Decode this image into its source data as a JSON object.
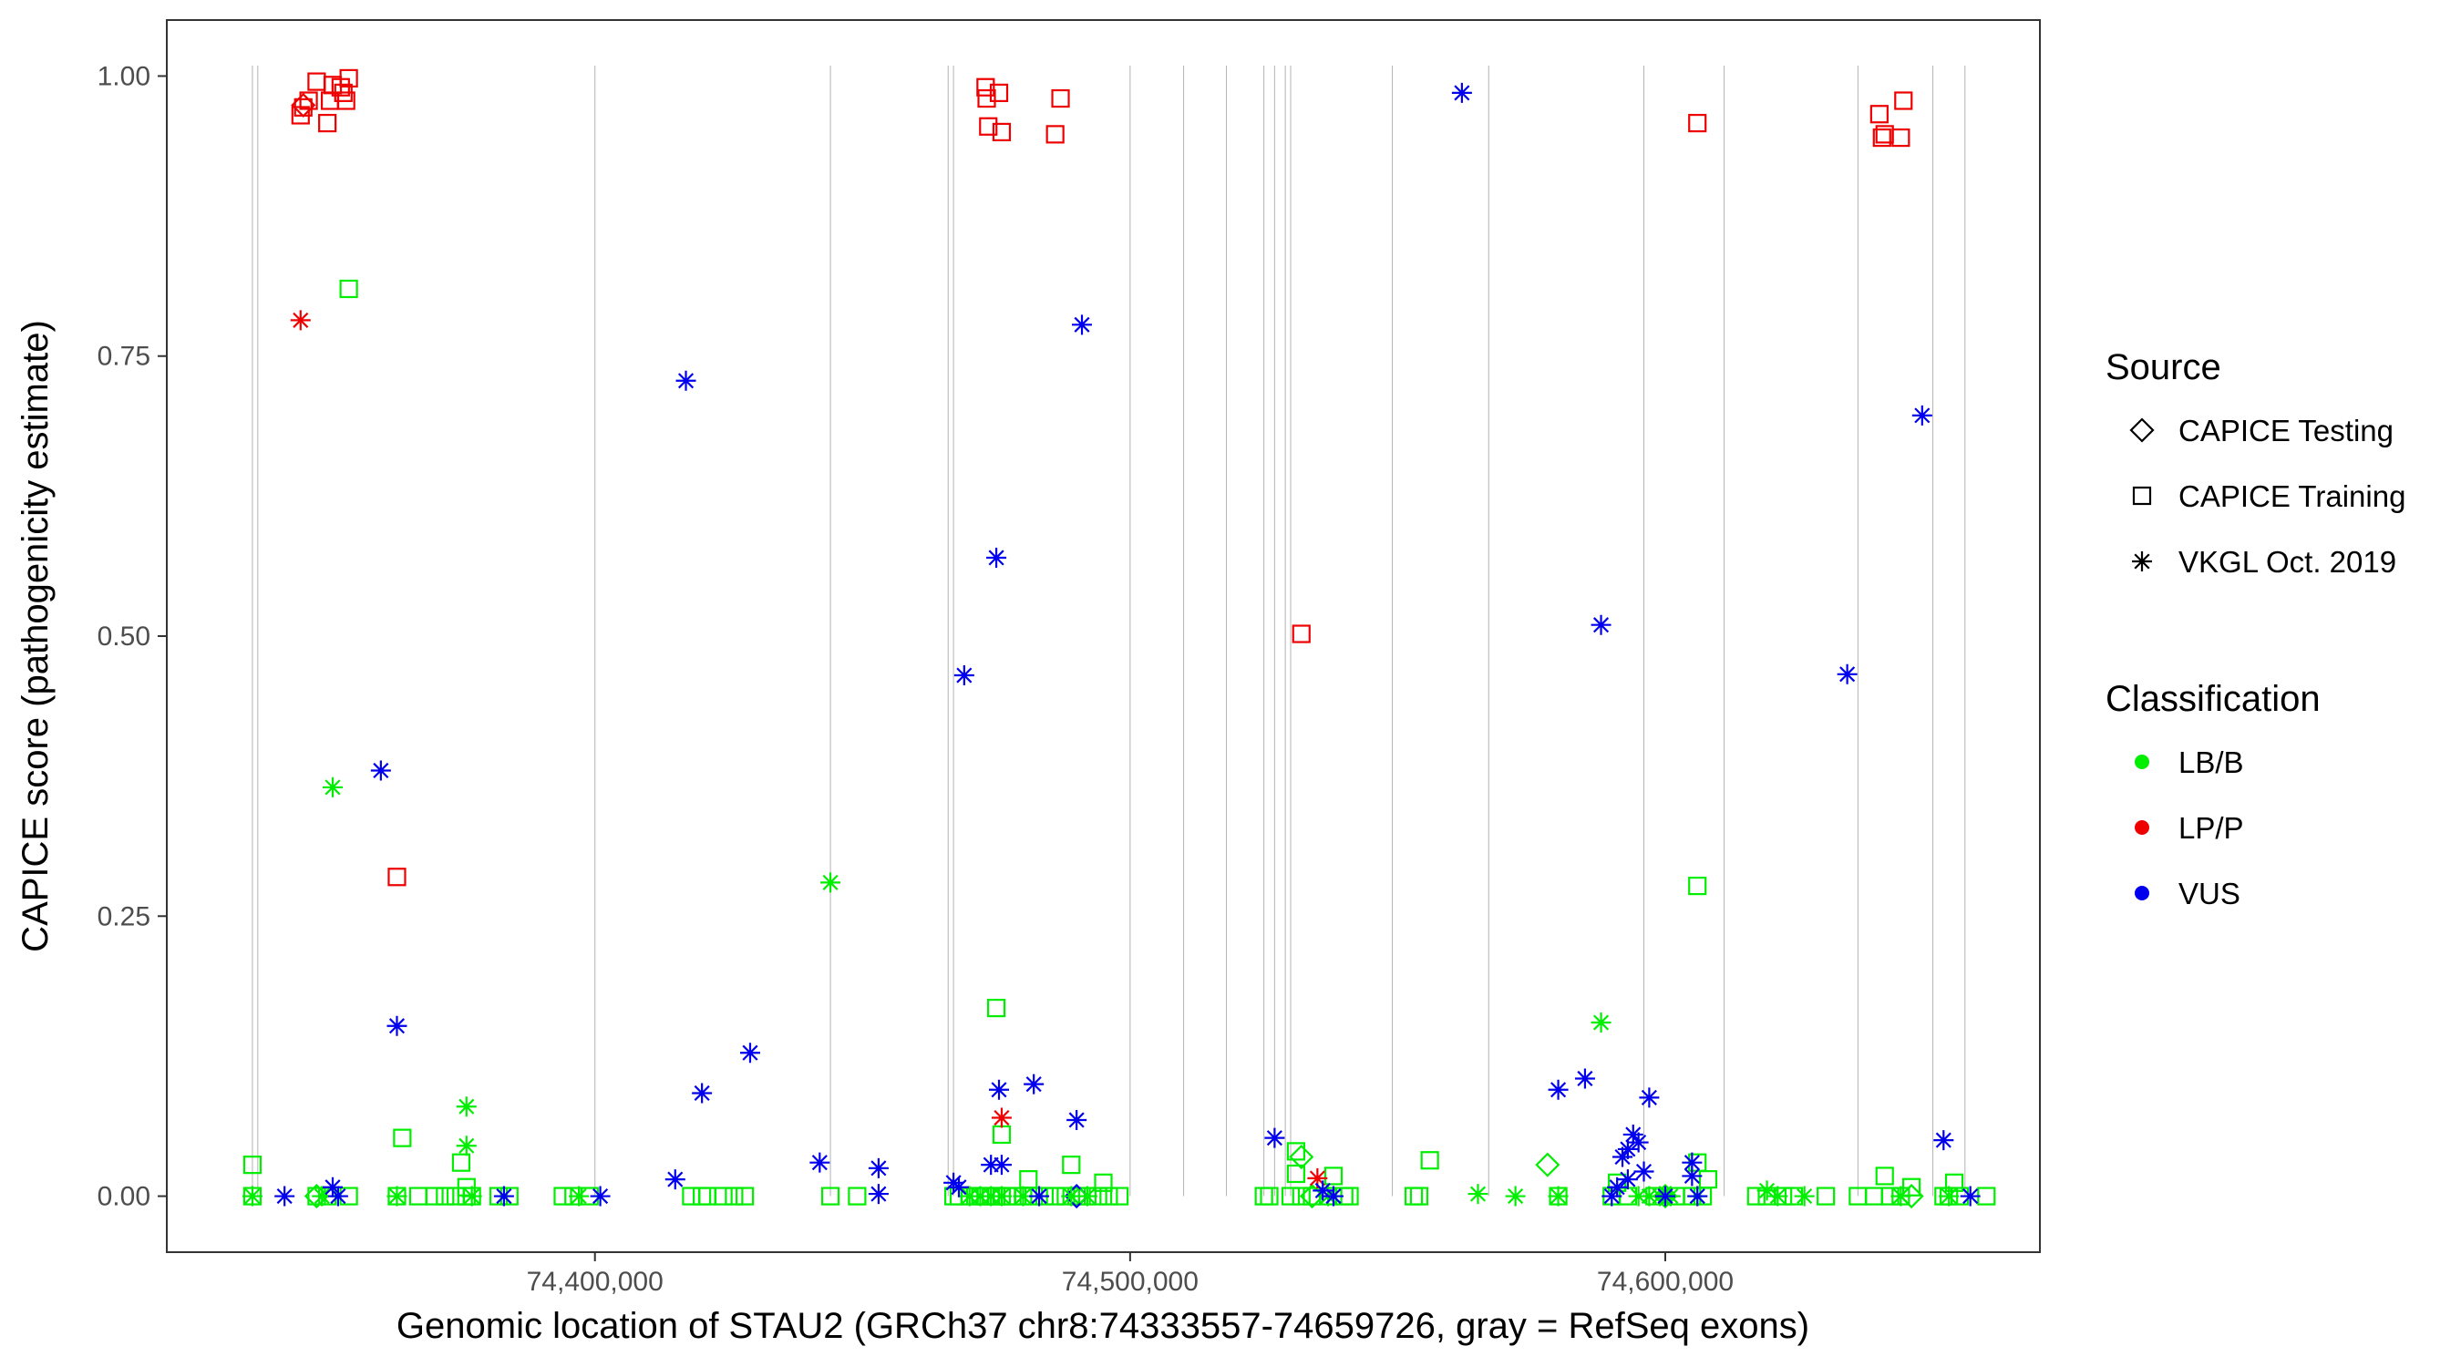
{
  "chart_data": {
    "type": "scatter",
    "title": "",
    "xlabel": "Genomic location of STAU2 (GRCh37 chr8:74333557-74659726, gray = RefSeq exons)",
    "ylabel": "CAPICE score (pathogenicity estimate)",
    "xlim": [
      74320000,
      74670000
    ],
    "ylim": [
      -0.05,
      1.05
    ],
    "x_ticks": [
      74400000,
      74500000,
      74600000
    ],
    "x_tick_labels": [
      "74,400,000",
      "74,500,000",
      "74,600,000"
    ],
    "y_ticks": [
      0,
      0.25,
      0.5,
      0.75,
      1.0
    ],
    "y_tick_labels": [
      "0.00",
      "0.25",
      "0.50",
      "0.75",
      "1.00"
    ],
    "grid": false,
    "exon_positions": [
      74336000,
      74337000,
      74400000,
      74444000,
      74466000,
      74467000,
      74500000,
      74510000,
      74518000,
      74525000,
      74527000,
      74529000,
      74530000,
      74549000,
      74567000,
      74596000,
      74611000,
      74636000,
      74650000,
      74656000
    ],
    "legend": {
      "placement": "right",
      "source": {
        "title": "Source",
        "entries": [
          {
            "label": "CAPICE Testing",
            "shape": "diamond"
          },
          {
            "label": "CAPICE Training",
            "shape": "square"
          },
          {
            "label": "VKGL Oct. 2019",
            "shape": "asterisk"
          }
        ]
      },
      "classification": {
        "title": "Classification",
        "entries": [
          {
            "label": "LB/B",
            "color": "#00EE00"
          },
          {
            "label": "LP/P",
            "color": "#EE0000"
          },
          {
            "label": "VUS",
            "color": "#0000EE"
          }
        ]
      }
    },
    "series": [
      {
        "source": "CAPICE Training",
        "classification": "LP/P",
        "points": [
          [
            74345000,
            0.965
          ],
          [
            74345500,
            0.972
          ],
          [
            74346500,
            0.978
          ],
          [
            74348000,
            0.995
          ],
          [
            74350000,
            0.958
          ],
          [
            74350500,
            0.978
          ],
          [
            74351000,
            0.992
          ],
          [
            74352500,
            0.99
          ],
          [
            74353000,
            0.985
          ],
          [
            74353500,
            0.978
          ],
          [
            74354000,
            0.998
          ],
          [
            74363000,
            0.285
          ],
          [
            74473000,
            0.99
          ],
          [
            74473200,
            0.98
          ],
          [
            74473500,
            0.955
          ],
          [
            74475500,
            0.985
          ],
          [
            74476000,
            0.95
          ],
          [
            74486000,
            0.948
          ],
          [
            74487000,
            0.98
          ],
          [
            74532000,
            0.502
          ],
          [
            74606000,
            0.958
          ],
          [
            74640000,
            0.966
          ],
          [
            74640500,
            0.945
          ],
          [
            74641000,
            0.948
          ],
          [
            74644000,
            0.945
          ],
          [
            74644500,
            0.978
          ]
        ]
      },
      {
        "source": "CAPICE Training",
        "classification": "LB/B",
        "points": [
          [
            74336000,
            0.028
          ],
          [
            74336000,
            0.0
          ],
          [
            74348000,
            0.0
          ],
          [
            74350000,
            0.0
          ],
          [
            74354000,
            0.0
          ],
          [
            74354000,
            0.81
          ],
          [
            74363000,
            0.0
          ],
          [
            74364000,
            0.052
          ],
          [
            74367000,
            0.0
          ],
          [
            74370000,
            0.0
          ],
          [
            74372000,
            0.0
          ],
          [
            74374000,
            0.0
          ],
          [
            74375000,
            0.03
          ],
          [
            74376000,
            0.0
          ],
          [
            74376000,
            0.008
          ],
          [
            74377000,
            0.0
          ],
          [
            74382000,
            0.0
          ],
          [
            74384000,
            0.0
          ],
          [
            74394000,
            0.0
          ],
          [
            74396000,
            0.0
          ],
          [
            74399000,
            0.0
          ],
          [
            74418000,
            0.0
          ],
          [
            74420000,
            0.0
          ],
          [
            74421000,
            0.0
          ],
          [
            74424000,
            0.0
          ],
          [
            74426000,
            0.0
          ],
          [
            74428000,
            0.0
          ],
          [
            74444000,
            0.0
          ],
          [
            74449000,
            0.0
          ],
          [
            74467000,
            0.0
          ],
          [
            74468000,
            0.0
          ],
          [
            74470000,
            0.0
          ],
          [
            74472000,
            0.0
          ],
          [
            74473000,
            0.0
          ],
          [
            74474000,
            0.0
          ],
          [
            74475000,
            0.0
          ],
          [
            74475000,
            0.168
          ],
          [
            74476000,
            0.055
          ],
          [
            74476000,
            0.0
          ],
          [
            74477000,
            0.0
          ],
          [
            74478000,
            0.0
          ],
          [
            74480000,
            0.0
          ],
          [
            74481000,
            0.015
          ],
          [
            74482000,
            0.0
          ],
          [
            74484000,
            0.0
          ],
          [
            74486000,
            0.0
          ],
          [
            74488000,
            0.0
          ],
          [
            74489000,
            0.028
          ],
          [
            74490000,
            0.0
          ],
          [
            74492000,
            0.0
          ],
          [
            74494000,
            0.0
          ],
          [
            74495000,
            0.012
          ],
          [
            74496000,
            0.0
          ],
          [
            74498000,
            0.0
          ],
          [
            74525000,
            0.0
          ],
          [
            74526000,
            0.0
          ],
          [
            74530000,
            0.0
          ],
          [
            74531000,
            0.04
          ],
          [
            74531000,
            0.02
          ],
          [
            74532000,
            0.0
          ],
          [
            74534000,
            0.0
          ],
          [
            74537000,
            0.0
          ],
          [
            74538000,
            0.018
          ],
          [
            74540000,
            0.0
          ],
          [
            74541000,
            0.0
          ],
          [
            74553000,
            0.0
          ],
          [
            74554000,
            0.0
          ],
          [
            74556000,
            0.032
          ],
          [
            74580000,
            0.0
          ],
          [
            74590000,
            0.0
          ],
          [
            74591000,
            0.012
          ],
          [
            74593000,
            0.0
          ],
          [
            74598000,
            0.0
          ],
          [
            74602000,
            0.0
          ],
          [
            74605000,
            0.0
          ],
          [
            74606000,
            0.277
          ],
          [
            74606000,
            0.03
          ],
          [
            74607000,
            0.0
          ],
          [
            74608000,
            0.015
          ],
          [
            74617000,
            0.0
          ],
          [
            74619000,
            0.0
          ],
          [
            74622000,
            0.0
          ],
          [
            74624000,
            0.0
          ],
          [
            74630000,
            0.0
          ],
          [
            74636000,
            0.0
          ],
          [
            74639000,
            0.0
          ],
          [
            74641000,
            0.018
          ],
          [
            74642000,
            0.0
          ],
          [
            74644000,
            0.0
          ],
          [
            74646000,
            0.008
          ],
          [
            74652000,
            0.0
          ],
          [
            74653000,
            0.0
          ],
          [
            74654000,
            0.012
          ],
          [
            74655000,
            0.0
          ],
          [
            74660000,
            0.0
          ]
        ]
      },
      {
        "source": "CAPICE Testing",
        "classification": "LB/B",
        "points": [
          [
            74348000,
            0.0
          ],
          [
            74532000,
            0.035
          ],
          [
            74534000,
            0.0
          ],
          [
            74578000,
            0.028
          ],
          [
            74600000,
            0.0
          ],
          [
            74646000,
            0.0
          ]
        ]
      },
      {
        "source": "CAPICE Testing",
        "classification": "LP/P",
        "points": [
          [
            74345500,
            0.974
          ]
        ]
      },
      {
        "source": "CAPICE Testing",
        "classification": "VUS",
        "points": [
          [
            74490000,
            0.0
          ]
        ]
      },
      {
        "source": "VKGL Oct. 2019",
        "classification": "LP/P",
        "points": [
          [
            74345000,
            0.782
          ],
          [
            74476000,
            0.07
          ],
          [
            74535000,
            0.016
          ]
        ]
      },
      {
        "source": "VKGL Oct. 2019",
        "classification": "LB/B",
        "points": [
          [
            74336000,
            0.0
          ],
          [
            74349000,
            0.0
          ],
          [
            74351000,
            0.365
          ],
          [
            74363000,
            0.0
          ],
          [
            74376000,
            0.08
          ],
          [
            74376000,
            0.045
          ],
          [
            74377000,
            0.0
          ],
          [
            74397000,
            0.0
          ],
          [
            74444000,
            0.28
          ],
          [
            74470000,
            0.0
          ],
          [
            74472000,
            0.0
          ],
          [
            74474000,
            0.0
          ],
          [
            74476000,
            0.0
          ],
          [
            74480000,
            0.0
          ],
          [
            74489000,
            0.0
          ],
          [
            74492000,
            0.0
          ],
          [
            74537000,
            0.0
          ],
          [
            74565000,
            0.002
          ],
          [
            74572000,
            0.0
          ],
          [
            74580000,
            0.0
          ],
          [
            74588000,
            0.155
          ],
          [
            74595000,
            0.0
          ],
          [
            74597000,
            0.0
          ],
          [
            74599000,
            0.0
          ],
          [
            74601000,
            0.0
          ],
          [
            74606000,
            0.0
          ],
          [
            74619000,
            0.005
          ],
          [
            74621000,
            0.0
          ],
          [
            74626000,
            0.0
          ],
          [
            74644000,
            0.0
          ],
          [
            74653000,
            0.0
          ]
        ]
      },
      {
        "source": "VKGL Oct. 2019",
        "classification": "VUS",
        "points": [
          [
            74342000,
            0.0
          ],
          [
            74351000,
            0.008
          ],
          [
            74352000,
            0.0
          ],
          [
            74360000,
            0.38
          ],
          [
            74363000,
            0.152
          ],
          [
            74383000,
            0.0
          ],
          [
            74401000,
            0.0
          ],
          [
            74415000,
            0.015
          ],
          [
            74417000,
            0.728
          ],
          [
            74420000,
            0.092
          ],
          [
            74429000,
            0.128
          ],
          [
            74442000,
            0.03
          ],
          [
            74453000,
            0.025
          ],
          [
            74453000,
            0.002
          ],
          [
            74467000,
            0.012
          ],
          [
            74468000,
            0.008
          ],
          [
            74469000,
            0.465
          ],
          [
            74474000,
            0.028
          ],
          [
            74475000,
            0.57
          ],
          [
            74475500,
            0.095
          ],
          [
            74476000,
            0.028
          ],
          [
            74482000,
            0.1
          ],
          [
            74483000,
            0.0
          ],
          [
            74490000,
            0.068
          ],
          [
            74491000,
            0.778
          ],
          [
            74527000,
            0.052
          ],
          [
            74536000,
            0.005
          ],
          [
            74538000,
            0.0
          ],
          [
            74562000,
            0.985
          ],
          [
            74580000,
            0.095
          ],
          [
            74585000,
            0.105
          ],
          [
            74588000,
            0.51
          ],
          [
            74590000,
            0.0
          ],
          [
            74591000,
            0.008
          ],
          [
            74592000,
            0.035
          ],
          [
            74593000,
            0.042
          ],
          [
            74593000,
            0.015
          ],
          [
            74594000,
            0.055
          ],
          [
            74595000,
            0.048
          ],
          [
            74596000,
            0.022
          ],
          [
            74597000,
            0.088
          ],
          [
            74600000,
            0.0
          ],
          [
            74605000,
            0.03
          ],
          [
            74605000,
            0.018
          ],
          [
            74606000,
            0.0
          ],
          [
            74634000,
            0.466
          ],
          [
            74648000,
            0.697
          ],
          [
            74652000,
            0.05
          ],
          [
            74657000,
            0.0
          ]
        ]
      }
    ]
  }
}
